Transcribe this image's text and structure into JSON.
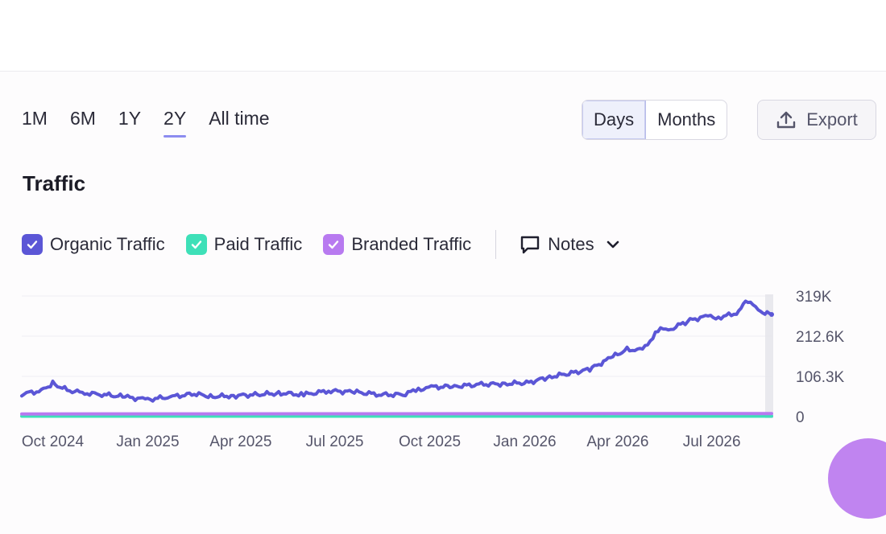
{
  "ranges": [
    "1M",
    "6M",
    "1Y",
    "2Y",
    "All time"
  ],
  "active_range": "2Y",
  "granularity": {
    "days": "Days",
    "months": "Months",
    "selected": "Days"
  },
  "export_label": "Export",
  "section_title": "Traffic",
  "legend": [
    {
      "label": "Organic Traffic",
      "color": "#5b56d6"
    },
    {
      "label": "Paid Traffic",
      "color": "#3ee0b8"
    },
    {
      "label": "Branded Traffic",
      "color": "#b87af0"
    }
  ],
  "notes_label": "Notes",
  "chart_data": {
    "type": "line",
    "title": "Traffic",
    "x_tick_labels": [
      "Oct 2024",
      "Jan 2025",
      "Apr 2025",
      "Jul 2025",
      "Oct 2025",
      "Jan 2026",
      "Apr 2026",
      "Jul 2026"
    ],
    "y_tick_labels": [
      "0",
      "106.3K",
      "212.6K",
      "319K"
    ],
    "ylim": [
      0,
      319000
    ],
    "grid": true,
    "series": [
      {
        "name": "Organic Traffic",
        "color": "#5b56d6",
        "x": [
          "2024-09-01",
          "2024-09-20",
          "2024-10-01",
          "2024-10-15",
          "2024-11-01",
          "2024-11-20",
          "2024-12-10",
          "2025-01-01",
          "2025-01-25",
          "2025-02-15",
          "2025-03-05",
          "2025-03-25",
          "2025-04-15",
          "2025-05-10",
          "2025-06-01",
          "2025-06-25",
          "2025-07-20",
          "2025-08-15",
          "2025-09-05",
          "2025-09-20",
          "2025-10-05",
          "2025-10-25",
          "2025-11-20",
          "2025-12-15",
          "2026-01-05",
          "2026-01-25",
          "2026-02-15",
          "2026-03-05",
          "2026-03-25",
          "2026-04-10",
          "2026-04-25",
          "2026-05-10",
          "2026-05-25",
          "2026-06-10",
          "2026-06-25",
          "2026-07-10",
          "2026-07-25",
          "2026-08-05",
          "2026-08-15",
          "2026-08-28"
        ],
        "values": [
          60000,
          68000,
          88000,
          70000,
          62000,
          58000,
          52000,
          45000,
          53000,
          60000,
          53000,
          55000,
          58000,
          62000,
          58000,
          68000,
          65000,
          58000,
          58000,
          72000,
          78000,
          80000,
          85000,
          87000,
          90000,
          105000,
          115000,
          125000,
          155000,
          178000,
          175000,
          228000,
          235000,
          255000,
          265000,
          262000,
          275000,
          308000,
          280000,
          270000
        ]
      },
      {
        "name": "Paid Traffic",
        "color": "#3ee0b8",
        "x": [
          "2024-09-01",
          "2026-08-28"
        ],
        "values": [
          1000,
          1000
        ]
      },
      {
        "name": "Branded Traffic",
        "color": "#b87af0",
        "x": [
          "2024-09-01",
          "2026-08-28"
        ],
        "values": [
          7000,
          8000
        ]
      }
    ]
  }
}
